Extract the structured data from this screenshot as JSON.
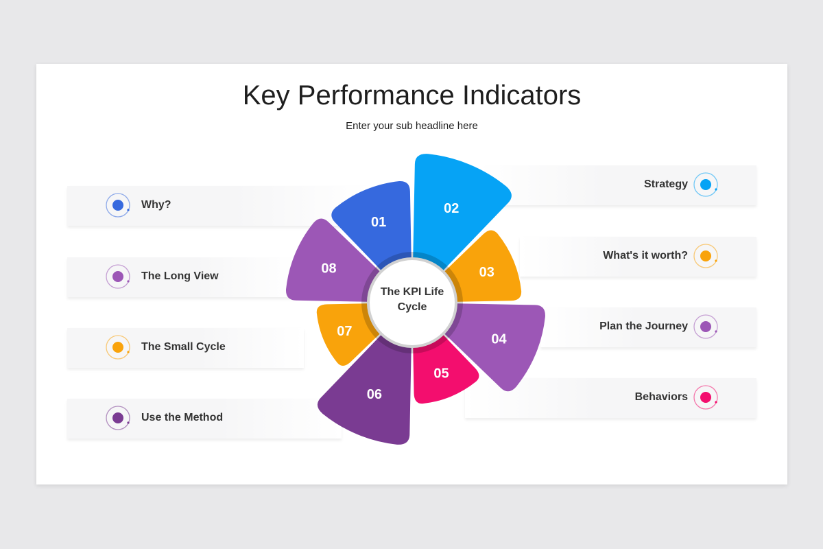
{
  "title": "Key Performance Indicators",
  "subtitle": "Enter your sub headline here",
  "center_label": "The KPI Life Cycle",
  "segments": [
    {
      "number": "01",
      "color": "#3669de"
    },
    {
      "number": "02",
      "color": "#06a3f5"
    },
    {
      "number": "03",
      "color": "#f9a30b"
    },
    {
      "number": "04",
      "color": "#9c57b6"
    },
    {
      "number": "05",
      "color": "#f30e6e"
    },
    {
      "number": "06",
      "color": "#7a3b92"
    },
    {
      "number": "07",
      "color": "#f9a30b"
    },
    {
      "number": "08",
      "color": "#9c57b6"
    }
  ],
  "left_items": [
    {
      "label": "Why?",
      "color": "#3669de",
      "icon": "ring-dot-icon"
    },
    {
      "label": "The Long View",
      "color": "#9c57b6",
      "icon": "ring-dot-icon"
    },
    {
      "label": "The Small Cycle",
      "color": "#f9a30b",
      "icon": "ring-dot-icon"
    },
    {
      "label": "Use the Method",
      "color": "#7a3b92",
      "icon": "ring-dot-icon"
    }
  ],
  "right_items": [
    {
      "label": "Strategy",
      "color": "#06a3f5",
      "icon": "ring-dot-icon"
    },
    {
      "label": "What's it worth?",
      "color": "#f9a30b",
      "icon": "ring-dot-icon"
    },
    {
      "label": "Plan the Journey",
      "color": "#9c57b6",
      "icon": "ring-dot-icon"
    },
    {
      "label": "Behaviors",
      "color": "#f30e6e",
      "icon": "ring-dot-icon"
    }
  ]
}
